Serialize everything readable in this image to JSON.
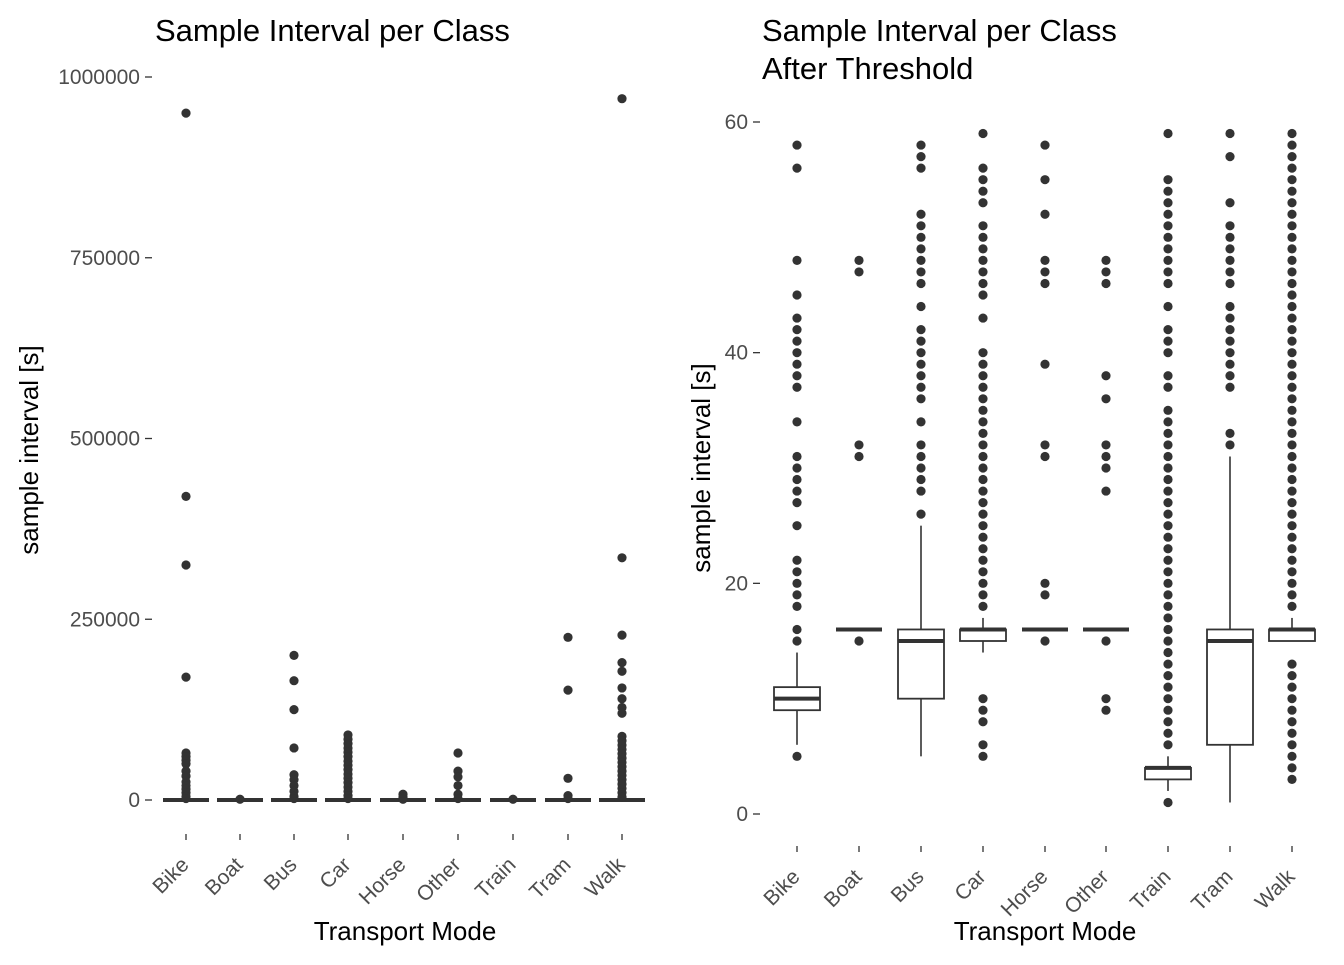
{
  "chart_data": [
    {
      "type": "boxplot",
      "title": "Sample Interval per Class",
      "xlabel": "Transport Mode",
      "ylabel": "sample interval [s]",
      "ylim": [
        0,
        1000000
      ],
      "yticks": [
        0,
        250000,
        500000,
        750000,
        1000000
      ],
      "ytick_labels": [
        "0",
        "250000",
        "500000",
        "750000",
        "1000000"
      ],
      "grid": false,
      "categories": [
        "Bike",
        "Boat",
        "Bus",
        "Car",
        "Horse",
        "Other",
        "Train",
        "Tram",
        "Walk"
      ],
      "boxes": [
        {
          "q1": 0,
          "median": 0,
          "q3": 0,
          "lo": 0,
          "hi": 0,
          "outliers": [
            950000,
            420000,
            325000,
            170000,
            65000,
            60000,
            55000,
            50000,
            40000,
            33000,
            25000,
            20000,
            15000,
            10000,
            5000,
            2000
          ]
        },
        {
          "q1": 0,
          "median": 0,
          "q3": 0,
          "lo": 0,
          "hi": 0,
          "outliers": [
            1000
          ]
        },
        {
          "q1": 0,
          "median": 0,
          "q3": 0,
          "lo": 0,
          "hi": 0,
          "outliers": [
            200000,
            165000,
            125000,
            72000,
            35000,
            28000,
            20000,
            12000,
            5000,
            2000
          ]
        },
        {
          "q1": 0,
          "median": 0,
          "q3": 0,
          "lo": 0,
          "hi": 0,
          "outliers": [
            90000,
            84000,
            78000,
            72000,
            66000,
            60000,
            54000,
            48000,
            42000,
            36000,
            30000,
            24000,
            18000,
            12000,
            6000,
            2000
          ]
        },
        {
          "q1": 0,
          "median": 0,
          "q3": 0,
          "lo": 0,
          "hi": 0,
          "outliers": [
            8000,
            4000,
            1000
          ]
        },
        {
          "q1": 0,
          "median": 0,
          "q3": 0,
          "lo": 0,
          "hi": 0,
          "outliers": [
            65000,
            40000,
            32000,
            20000,
            8000,
            2000
          ]
        },
        {
          "q1": 0,
          "median": 0,
          "q3": 0,
          "lo": 0,
          "hi": 0,
          "outliers": [
            1000
          ]
        },
        {
          "q1": 0,
          "median": 0,
          "q3": 0,
          "lo": 0,
          "hi": 0,
          "outliers": [
            225000,
            152000,
            30000,
            6000,
            2000
          ]
        },
        {
          "q1": 0,
          "median": 0,
          "q3": 0,
          "lo": 0,
          "hi": 0,
          "outliers": [
            970000,
            335000,
            228000,
            190000,
            178000,
            155000,
            140000,
            128000,
            120000,
            88000,
            82000,
            76000,
            70000,
            64000,
            58000,
            52000,
            46000,
            40000,
            34000,
            28000,
            22000,
            16000,
            10000,
            4000
          ]
        }
      ]
    },
    {
      "type": "boxplot",
      "title": "Sample Interval per Class\nAfter Threshold",
      "title_lines": [
        "Sample Interval per Class",
        "After Threshold"
      ],
      "xlabel": "Transport Mode",
      "ylabel": "sample interval [s]",
      "ylim": [
        0,
        60
      ],
      "yticks": [
        0,
        20,
        40,
        60
      ],
      "ytick_labels": [
        "0",
        "20",
        "40",
        "60"
      ],
      "grid": false,
      "categories": [
        "Bike",
        "Boat",
        "Bus",
        "Car",
        "Horse",
        "Other",
        "Train",
        "Tram",
        "Walk"
      ],
      "boxes": [
        {
          "q1": 9,
          "median": 10,
          "q3": 11,
          "lo": 6,
          "hi": 14,
          "outliers": [
            5,
            15,
            16,
            18,
            19,
            20,
            21,
            22,
            25,
            27,
            28,
            29,
            30,
            31,
            34,
            37,
            38,
            39,
            40,
            41,
            42,
            43,
            45,
            48,
            56,
            58
          ]
        },
        {
          "q1": 16,
          "median": 16,
          "q3": 16,
          "lo": 16,
          "hi": 16,
          "outliers": [
            15,
            31,
            32,
            47,
            48
          ]
        },
        {
          "q1": 10,
          "median": 15,
          "q3": 16,
          "lo": 5,
          "hi": 25,
          "outliers": [
            26,
            28,
            29,
            30,
            31,
            32,
            34,
            36,
            37,
            38,
            39,
            40,
            41,
            42,
            44,
            46,
            47,
            48,
            49,
            50,
            51,
            52,
            56,
            57,
            58
          ]
        },
        {
          "q1": 15,
          "median": 16,
          "q3": 16,
          "lo": 14,
          "hi": 17,
          "outliers": [
            5,
            6,
            8,
            9,
            10,
            18,
            19,
            20,
            21,
            22,
            23,
            24,
            25,
            26,
            27,
            28,
            29,
            30,
            31,
            32,
            33,
            34,
            35,
            36,
            37,
            38,
            39,
            40,
            43,
            45,
            46,
            47,
            48,
            49,
            50,
            51,
            53,
            54,
            55,
            56,
            59
          ]
        },
        {
          "q1": 16,
          "median": 16,
          "q3": 16,
          "lo": 16,
          "hi": 16,
          "outliers": [
            15,
            19,
            20,
            31,
            32,
            39,
            46,
            47,
            48,
            52,
            55,
            58
          ]
        },
        {
          "q1": 16,
          "median": 16,
          "q3": 16,
          "lo": 16,
          "hi": 16,
          "outliers": [
            9,
            10,
            15,
            28,
            30,
            31,
            32,
            36,
            38,
            46,
            47,
            48
          ]
        },
        {
          "q1": 3,
          "median": 4,
          "q3": 4,
          "lo": 2,
          "hi": 5,
          "outliers": [
            1,
            6,
            7,
            8,
            9,
            10,
            11,
            12,
            13,
            14,
            15,
            16,
            17,
            18,
            19,
            20,
            21,
            22,
            23,
            24,
            25,
            26,
            27,
            28,
            29,
            30,
            31,
            32,
            33,
            34,
            35,
            37,
            38,
            40,
            41,
            42,
            44,
            46,
            47,
            48,
            49,
            50,
            51,
            52,
            53,
            54,
            55,
            59
          ]
        },
        {
          "q1": 6,
          "median": 15,
          "q3": 16,
          "lo": 1,
          "hi": 31,
          "outliers": [
            32,
            33,
            37,
            38,
            39,
            40,
            41,
            42,
            43,
            44,
            46,
            47,
            48,
            49,
            50,
            51,
            53,
            57,
            59
          ]
        },
        {
          "q1": 15,
          "median": 16,
          "q3": 16,
          "lo": 15,
          "hi": 17,
          "outliers": [
            3,
            4,
            5,
            6,
            7,
            8,
            9,
            10,
            11,
            12,
            13,
            18,
            19,
            20,
            21,
            22,
            23,
            24,
            25,
            26,
            27,
            28,
            29,
            30,
            31,
            32,
            33,
            34,
            35,
            36,
            37,
            38,
            39,
            40,
            41,
            42,
            43,
            44,
            45,
            46,
            47,
            48,
            49,
            50,
            51,
            52,
            53,
            54,
            55,
            56,
            57,
            58,
            59
          ]
        }
      ]
    }
  ],
  "colors": {
    "ink": "#333333",
    "tick_text": "#4d4d4d"
  }
}
